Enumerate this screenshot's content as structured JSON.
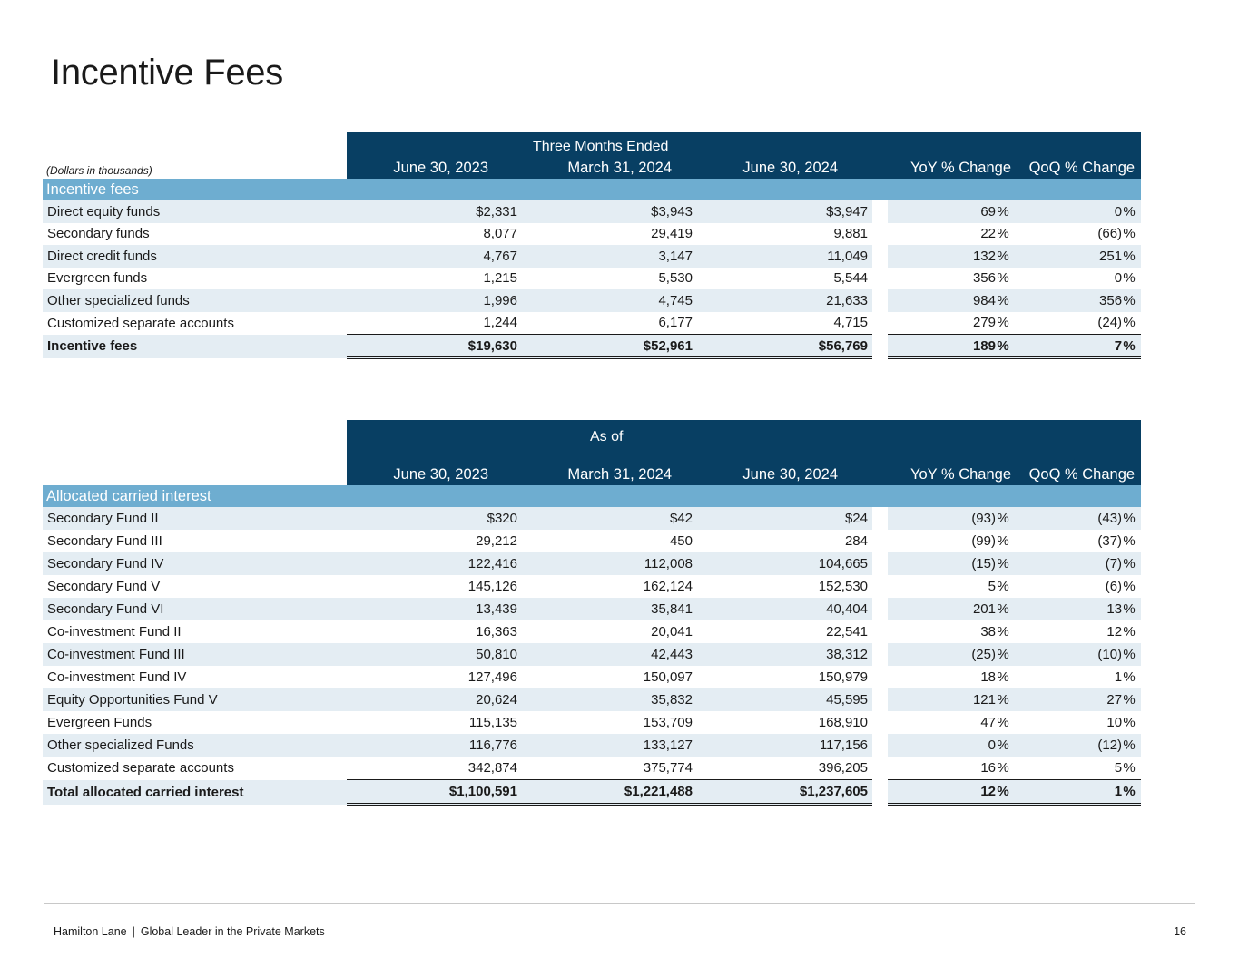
{
  "title": "Incentive Fees",
  "incentive_table": {
    "units_note": "(Dollars in thousands)",
    "period_header": "Three Months Ended",
    "columns": [
      "June 30, 2023",
      "March 31, 2024",
      "June 30, 2024",
      "YoY % Change",
      "QoQ % Change"
    ],
    "section_label": "Incentive fees",
    "rows": [
      {
        "label": "Direct equity funds",
        "v1": "$2,331",
        "v2": "$3,943",
        "v3": "$3,947",
        "yoy": "69",
        "qoq": "0"
      },
      {
        "label": "Secondary funds",
        "v1": "8,077",
        "v2": "29,419",
        "v3": "9,881",
        "yoy": "22",
        "qoq": "(66)"
      },
      {
        "label": "Direct credit funds",
        "v1": "4,767",
        "v2": "3,147",
        "v3": "11,049",
        "yoy": "132",
        "qoq": "251"
      },
      {
        "label": "Evergreen funds",
        "v1": "1,215",
        "v2": "5,530",
        "v3": "5,544",
        "yoy": "356",
        "qoq": "0"
      },
      {
        "label": "Other specialized funds",
        "v1": "1,996",
        "v2": "4,745",
        "v3": "21,633",
        "yoy": "984",
        "qoq": "356"
      },
      {
        "label": "Customized separate accounts",
        "v1": "1,244",
        "v2": "6,177",
        "v3": "4,715",
        "yoy": "279",
        "qoq": "(24)"
      }
    ],
    "total": {
      "label": "Incentive fees",
      "v1": "$19,630",
      "v2": "$52,961",
      "v3": "$56,769",
      "yoy": "189",
      "qoq": "7"
    }
  },
  "carried_table": {
    "period_header": "As of",
    "columns": [
      "June 30, 2023",
      "March 31, 2024",
      "June 30, 2024",
      "YoY % Change",
      "QoQ % Change"
    ],
    "section_label": "Allocated carried interest",
    "rows": [
      {
        "label": "Secondary Fund II",
        "v1": "$320",
        "v2": "$42",
        "v3": "$24",
        "yoy": "(93)",
        "qoq": "(43)"
      },
      {
        "label": "Secondary Fund III",
        "v1": "29,212",
        "v2": "450",
        "v3": "284",
        "yoy": "(99)",
        "qoq": "(37)"
      },
      {
        "label": "Secondary Fund IV",
        "v1": "122,416",
        "v2": "112,008",
        "v3": "104,665",
        "yoy": "(15)",
        "qoq": "(7)"
      },
      {
        "label": "Secondary Fund V",
        "v1": "145,126",
        "v2": "162,124",
        "v3": "152,530",
        "yoy": "5",
        "qoq": "(6)"
      },
      {
        "label": "Secondary Fund VI",
        "v1": "13,439",
        "v2": "35,841",
        "v3": "40,404",
        "yoy": "201",
        "qoq": "13"
      },
      {
        "label": "Co-investment Fund II",
        "v1": "16,363",
        "v2": "20,041",
        "v3": "22,541",
        "yoy": "38",
        "qoq": "12"
      },
      {
        "label": "Co-investment Fund III",
        "v1": "50,810",
        "v2": "42,443",
        "v3": "38,312",
        "yoy": "(25)",
        "qoq": "(10)"
      },
      {
        "label": "Co-investment Fund IV",
        "v1": "127,496",
        "v2": "150,097",
        "v3": "150,979",
        "yoy": "18",
        "qoq": "1"
      },
      {
        "label": "Equity Opportunities Fund V",
        "v1": "20,624",
        "v2": "35,832",
        "v3": "45,595",
        "yoy": "121",
        "qoq": "27"
      },
      {
        "label": "Evergreen Funds",
        "v1": "115,135",
        "v2": "153,709",
        "v3": "168,910",
        "yoy": "47",
        "qoq": "10"
      },
      {
        "label": "Other specialized Funds",
        "v1": "116,776",
        "v2": "133,127",
        "v3": "117,156",
        "yoy": "0",
        "qoq": "(12)"
      },
      {
        "label": "Customized separate accounts",
        "v1": "342,874",
        "v2": "375,774",
        "v3": "396,205",
        "yoy": "16",
        "qoq": "5"
      }
    ],
    "total": {
      "label": "Total allocated carried interest",
      "v1": "$1,100,591",
      "v2": "$1,221,488",
      "v3": "$1,237,605",
      "yoy": "12",
      "qoq": "1"
    }
  },
  "percent_sign": "%",
  "footer": {
    "company": "Hamilton Lane",
    "separator": "|",
    "tagline": "Global Leader in the Private Markets",
    "page_number": "16"
  }
}
